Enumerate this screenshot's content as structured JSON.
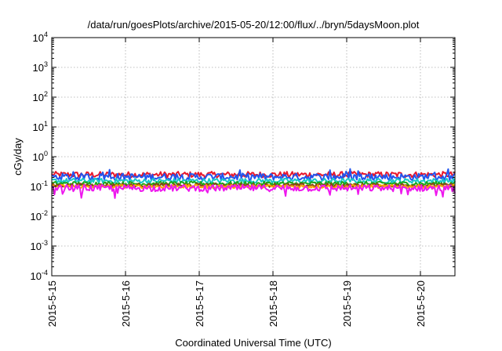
{
  "chart_data": {
    "type": "line",
    "title": "/data/run/goesPlots/archive/2015-05-20/12:00/flux/../bryn/5daysMoon.plot",
    "xlabel": "Coordinated Universal Time (UTC)",
    "ylabel": "cGy/day",
    "yscale": "log",
    "ylim": [
      0.0001,
      10000
    ],
    "xlim": [
      "2015-05-15",
      "2015-05-20 12:00"
    ],
    "grid": true,
    "x_ticks": [
      "2015-5-15",
      "2015-5-16",
      "2015-5-17",
      "2015-5-18",
      "2015-5-19",
      "2015-5-20"
    ],
    "y_ticks": [
      {
        "value": 10000,
        "base": "10",
        "exp": "4"
      },
      {
        "value": 1000,
        "base": "10",
        "exp": "3"
      },
      {
        "value": 100,
        "base": "10",
        "exp": "2"
      },
      {
        "value": 10,
        "base": "10",
        "exp": "1"
      },
      {
        "value": 1,
        "base": "10",
        "exp": "0"
      },
      {
        "value": 0.1,
        "base": "10",
        "exp": "-1"
      },
      {
        "value": 0.01,
        "base": "10",
        "exp": "-2"
      },
      {
        "value": 0.001,
        "base": "10",
        "exp": "-3"
      },
      {
        "value": 0.0001,
        "base": "10",
        "exp": "-4"
      }
    ],
    "series": [
      {
        "color": "#e8182c",
        "base": 0.25,
        "variation": 0.2
      },
      {
        "color": "#2255ee",
        "base": 0.21,
        "variation": 0.24
      },
      {
        "color": "#18c8c8",
        "base": 0.155,
        "variation": 0.16
      },
      {
        "color": "#19a819",
        "base": 0.125,
        "variation": 0.14
      },
      {
        "color": "#8b4513",
        "base": 0.11,
        "variation": 0.12
      },
      {
        "color": "#ffa500",
        "base": 0.1,
        "variation": 0.12
      },
      {
        "color": "#ee18ee",
        "base": 0.088,
        "variation": 0.22
      }
    ]
  }
}
